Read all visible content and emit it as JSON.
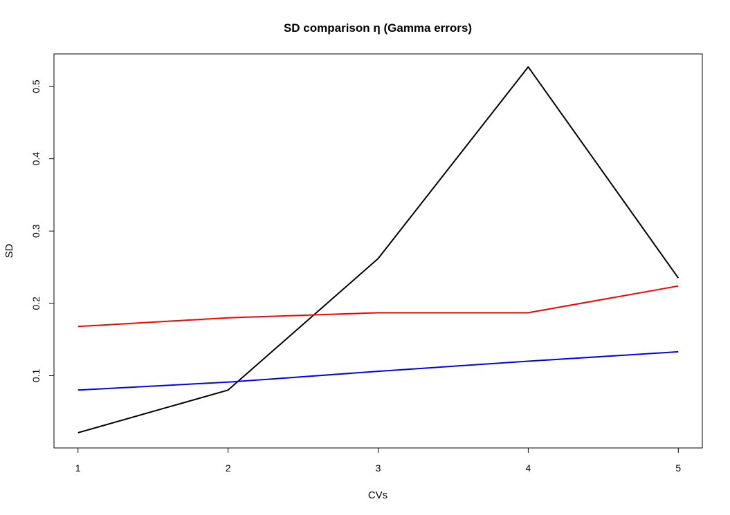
{
  "chart_data": {
    "type": "line",
    "title": "SD comparison η (Gamma errors)",
    "xlabel": "CVs",
    "ylabel": "SD",
    "x": [
      1,
      2,
      3,
      4,
      5
    ],
    "xticks": [
      "1",
      "2",
      "3",
      "4",
      "5"
    ],
    "yticks": [
      0.1,
      0.2,
      0.3,
      0.4,
      0.5
    ],
    "ytick_labels": [
      "0.1",
      "0.2",
      "0.3",
      "0.4",
      "0.5"
    ],
    "xlim": [
      0.84,
      5.16
    ],
    "ylim": [
      0.0,
      0.545
    ],
    "grid": false,
    "legend": "none",
    "series": [
      {
        "color": "#000000",
        "values": [
          0.021,
          0.08,
          0.262,
          0.527,
          0.235
        ]
      },
      {
        "color": "#ff0000",
        "values": [
          0.168,
          0.18,
          0.187,
          0.187,
          0.224
        ]
      },
      {
        "color": "#0000ff",
        "values": [
          0.08,
          0.091,
          0.106,
          0.12,
          0.133
        ]
      }
    ]
  }
}
